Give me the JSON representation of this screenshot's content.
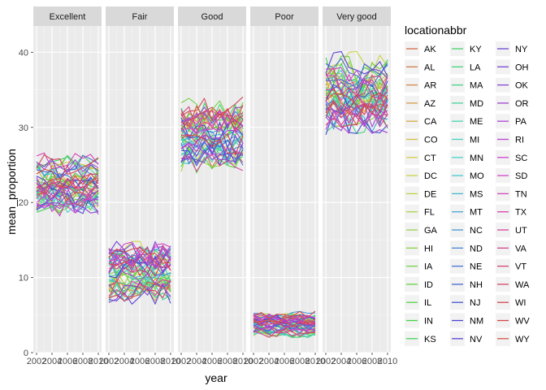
{
  "chart_data": {
    "type": "line",
    "xlabel": "year",
    "ylabel": "mean_proportion",
    "xlim": [
      2002,
      2010
    ],
    "ylim": [
      0,
      43.5
    ],
    "x_ticks": [
      2002,
      2004,
      2006,
      2008,
      2010
    ],
    "x_tick_labels": [
      "2002",
      "2004",
      "2006",
      "2008",
      "2010"
    ],
    "y_ticks": [
      0,
      10,
      20,
      30,
      40
    ],
    "y_tick_labels": [
      "0",
      "10",
      "20",
      "30",
      "40"
    ],
    "grid": true,
    "panel_background": "#ebebeb",
    "strip_background": "#d9d9d9",
    "panels": [
      "Excellent",
      "Fair",
      "Good",
      "Poor",
      "Very good"
    ],
    "panel_ranges": {
      "Excellent": [
        19.5,
        25.5
      ],
      "Fair": [
        7.5,
        13.5
      ],
      "Good": [
        25.5,
        32.5
      ],
      "Poor": [
        2.5,
        5.0
      ],
      "Very good": [
        30.5,
        38.5
      ]
    },
    "years": [
      2002,
      2003,
      2004,
      2005,
      2006,
      2007,
      2008,
      2009,
      2010
    ],
    "legend": {
      "title": "locationabbr",
      "position": "right",
      "columns": [
        [
          "AK",
          "AL",
          "AR",
          "AZ",
          "CA",
          "CO",
          "CT",
          "DC",
          "DE",
          "FL",
          "GA",
          "HI",
          "IA",
          "ID",
          "IL",
          "IN",
          "KS"
        ],
        [
          "KY",
          "LA",
          "MA",
          "MD",
          "ME",
          "MI",
          "MN",
          "MO",
          "MS",
          "MT",
          "NC",
          "ND",
          "NE",
          "NH",
          "NJ",
          "NM",
          "NV"
        ],
        [
          "NY",
          "OH",
          "OK",
          "OR",
          "PA",
          "RI",
          "SC",
          "SD",
          "TN",
          "TX",
          "UT",
          "VA",
          "VT",
          "WA",
          "WI",
          "WV",
          "WY"
        ]
      ]
    },
    "series_names": [
      "AK",
      "AL",
      "AR",
      "AZ",
      "CA",
      "CO",
      "CT",
      "DC",
      "DE",
      "FL",
      "GA",
      "HI",
      "IA",
      "ID",
      "IL",
      "IN",
      "KS",
      "KY",
      "LA",
      "MA",
      "MD",
      "ME",
      "MI",
      "MN",
      "MO",
      "MS",
      "MT",
      "NC",
      "ND",
      "NE",
      "NH",
      "NJ",
      "NM",
      "NV",
      "NY",
      "OH",
      "OK",
      "OR",
      "PA",
      "RI",
      "SC",
      "SD",
      "TN",
      "TX",
      "UT",
      "VA",
      "VT",
      "WA",
      "WI",
      "WV",
      "WY"
    ]
  }
}
